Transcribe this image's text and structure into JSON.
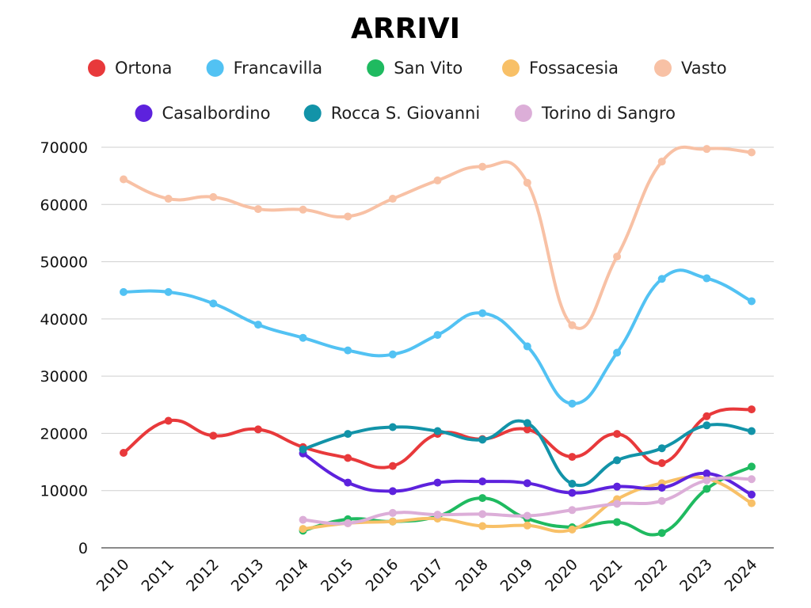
{
  "chart_data": {
    "type": "line",
    "title": "ARRIVI",
    "xlabel": "",
    "ylabel": "",
    "x": [
      "2010",
      "2011",
      "2012",
      "2013",
      "2014",
      "2015",
      "2016",
      "2017",
      "2018",
      "2019",
      "2020",
      "2021",
      "2022",
      "2023",
      "2024"
    ],
    "ylim": [
      0,
      70000
    ],
    "yticks": [
      0,
      10000,
      20000,
      30000,
      40000,
      50000,
      60000,
      70000
    ],
    "grid": true,
    "legend_position": "top",
    "series": [
      {
        "name": "Ortona",
        "color": "#e8393b",
        "values": [
          16600,
          22200,
          19600,
          20700,
          17600,
          15700,
          14300,
          19900,
          19000,
          20700,
          15900,
          19900,
          14800,
          23000,
          24200
        ]
      },
      {
        "name": "Francavilla",
        "color": "#52c2f3",
        "values": [
          44700,
          44700,
          42700,
          39000,
          36700,
          34500,
          33800,
          37200,
          41000,
          35200,
          25200,
          34100,
          47000,
          47100,
          43100
        ]
      },
      {
        "name": "San Vito",
        "color": "#1fba60",
        "values": [
          null,
          null,
          null,
          null,
          3000,
          5000,
          4600,
          5500,
          8700,
          5100,
          3600,
          4500,
          2600,
          10300,
          14200
        ]
      },
      {
        "name": "Fossacesia",
        "color": "#f8c067",
        "values": [
          null,
          null,
          null,
          null,
          3300,
          4300,
          4600,
          5100,
          3800,
          3900,
          3200,
          8500,
          11300,
          12100,
          7800
        ]
      },
      {
        "name": "Vasto",
        "color": "#f8c1a5",
        "values": [
          64400,
          61000,
          61300,
          59200,
          59100,
          57900,
          61000,
          64200,
          66600,
          63800,
          38900,
          50900,
          67500,
          69700,
          69100
        ]
      },
      {
        "name": "Casalbordino",
        "color": "#5d22dd",
        "values": [
          null,
          null,
          null,
          null,
          16500,
          11400,
          9900,
          11400,
          11600,
          11300,
          9600,
          10700,
          10500,
          13000,
          9300
        ]
      },
      {
        "name": "Rocca S. Giovanni",
        "color": "#1293a8",
        "values": [
          null,
          null,
          null,
          null,
          17200,
          19900,
          21100,
          20400,
          18900,
          21800,
          11200,
          15300,
          17400,
          21400,
          20400
        ]
      },
      {
        "name": "Torino di Sangro",
        "color": "#dcaed8",
        "values": [
          null,
          null,
          null,
          null,
          4900,
          4300,
          6100,
          5800,
          5900,
          5600,
          6600,
          7700,
          8200,
          11800,
          12000
        ]
      }
    ]
  }
}
